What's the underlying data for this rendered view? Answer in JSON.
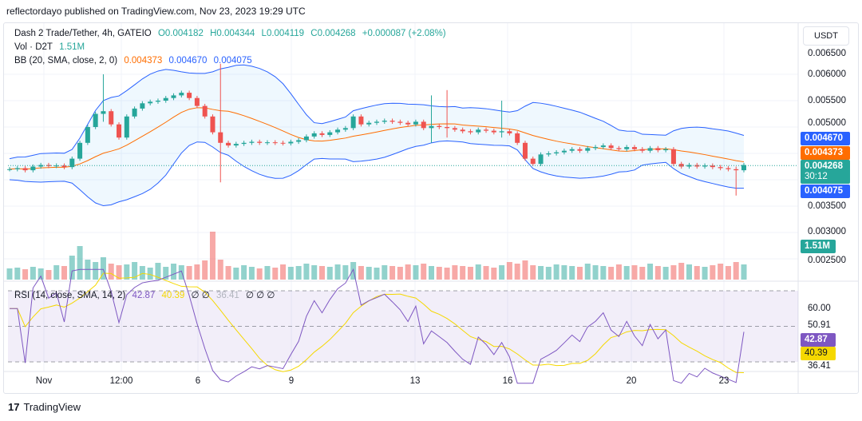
{
  "publisher": "reflectordayo published on TradingView.com, Nov 23, 2023 19:29 UTC",
  "symbol": {
    "title": "Dash 2 Trade/Tether, 4h, GATEIO",
    "o": "O0.004182",
    "h": "H0.004344",
    "l": "L0.004119",
    "c": "C0.004268",
    "change": "+0.000087 (+2.08%)"
  },
  "volume": {
    "label": "Vol · D2T",
    "value": "1.51M"
  },
  "bb": {
    "label": "BB (20, SMA, close, 2, 0)",
    "basis": "0.004373",
    "upper": "0.004670",
    "lower": "0.004075"
  },
  "rsi": {
    "label": "RSI (14, close, SMA, 14, 2)",
    "value": "42.87",
    "sma": "40.39",
    "extra": "∅ ∅",
    "lower": "36.41",
    "extra2": "∅ ∅ ∅"
  },
  "currency": "USDT",
  "price_ticks": [
    "0.006500",
    "0.006000",
    "0.005500",
    "0.005000",
    "0.003500",
    "0.003000",
    "0.002500"
  ],
  "price_tags": {
    "upper": "0.004670",
    "basis": "0.004373",
    "close": "0.004268",
    "countdown": "30:12",
    "lower": "0.004075",
    "vol": "1.51M"
  },
  "rsi_ticks": [
    "60.00",
    "50.91"
  ],
  "rsi_tags": {
    "rsi": "42.87",
    "sma": "40.39",
    "low": "36.41"
  },
  "x_ticks": [
    "Nov",
    "12:00",
    "6",
    "9",
    "13",
    "16",
    "20",
    "23"
  ],
  "brand": "TradingView",
  "colors": {
    "up": "#26a69a",
    "down": "#ef5350",
    "bb_basis": "#ff6d00",
    "bb_band": "#2962ff",
    "rsi": "#7e57c2",
    "rsi_sma": "#f5d800"
  },
  "chart_data": {
    "type": "candlestick",
    "closes": [
      0.0042,
      0.00422,
      0.00418,
      0.00425,
      0.00428,
      0.00426,
      0.00427,
      0.00424,
      0.0044,
      0.0047,
      0.005,
      0.00525,
      0.0053,
      0.00505,
      0.0048,
      0.0052,
      0.00535,
      0.00545,
      0.00548,
      0.0055,
      0.00555,
      0.0056,
      0.00565,
      0.00555,
      0.0054,
      0.0052,
      0.0049,
      0.0047,
      0.00465,
      0.00468,
      0.0047,
      0.00472,
      0.0047,
      0.00471,
      0.0047,
      0.00469,
      0.00472,
      0.00475,
      0.00482,
      0.00488,
      0.00485,
      0.0049,
      0.00495,
      0.00498,
      0.0052,
      0.00505,
      0.00508,
      0.0051,
      0.00512,
      0.0051,
      0.00508,
      0.00505,
      0.0051,
      0.00498,
      0.00502,
      0.005,
      0.00498,
      0.00495,
      0.00492,
      0.0049,
      0.00495,
      0.00493,
      0.0049,
      0.00492,
      0.00488,
      0.0047,
      0.0044,
      0.0043,
      0.00448,
      0.0045,
      0.00452,
      0.00455,
      0.00458,
      0.00455,
      0.0046,
      0.00462,
      0.00465,
      0.0046,
      0.00458,
      0.00462,
      0.00458,
      0.00455,
      0.0046,
      0.00456,
      0.00458,
      0.0043,
      0.00425,
      0.00428,
      0.00425,
      0.00427,
      0.00424,
      0.00422,
      0.0042,
      0.00418,
      0.00428
    ],
    "wicks": [
      [
        12,
        0.006,
        0.0051
      ],
      [
        27,
        0.0062,
        0.00395
      ],
      [
        54,
        0.0056,
        0.0047
      ],
      [
        56,
        0.0057,
        0.0048
      ],
      [
        63,
        0.0055,
        0.0048
      ],
      [
        93,
        0.00425,
        0.0037
      ]
    ],
    "volumes": [
      14,
      15,
      13,
      16,
      14,
      12,
      18,
      17,
      30,
      42,
      25,
      22,
      28,
      20,
      18,
      19,
      22,
      17,
      15,
      21,
      16,
      20,
      18,
      17,
      19,
      24,
      60,
      25,
      17,
      15,
      18,
      16,
      14,
      17,
      15,
      19,
      16,
      17,
      20,
      18,
      17,
      16,
      19,
      18,
      22,
      17,
      16,
      15,
      18,
      17,
      16,
      19,
      18,
      20,
      17,
      16,
      15,
      18,
      17,
      16,
      19,
      17,
      15,
      18,
      22,
      20,
      24,
      18,
      17,
      16,
      19,
      18,
      17,
      16,
      20,
      18,
      17,
      16,
      19,
      17,
      18,
      16,
      20,
      17,
      16,
      18,
      21,
      19,
      17,
      16,
      18,
      20,
      17,
      22,
      19
    ],
    "price_range": [
      0.0025,
      0.0065
    ],
    "rsi_range": [
      30,
      70
    ]
  }
}
